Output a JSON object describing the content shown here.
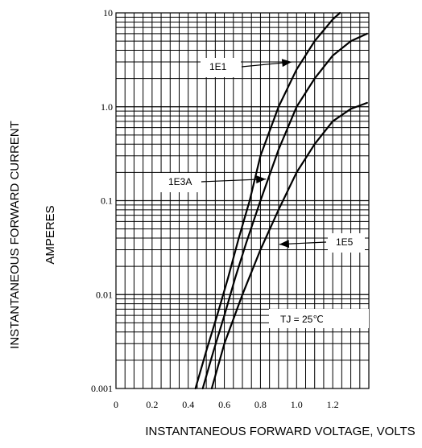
{
  "chart_data": {
    "type": "line",
    "title": "",
    "xlabel": "INSTANTANEOUS FORWARD VOLTAGE,  VOLTS",
    "ylabel_line1": "INSTANTANEOUS FORWARD CURRENT",
    "ylabel_line2": "AMPERES",
    "x_scale": "linear",
    "y_scale": "log",
    "xlim": [
      0,
      1.4
    ],
    "ylim": [
      0.001,
      10
    ],
    "grid": true,
    "x_ticks": [
      {
        "value": 0,
        "label": "0"
      },
      {
        "value": 0.2,
        "label": "0.2"
      },
      {
        "value": 0.4,
        "label": "0.4"
      },
      {
        "value": 0.6,
        "label": "0.6"
      },
      {
        "value": 0.8,
        "label": "0.8"
      },
      {
        "value": 1.0,
        "label": "1.0"
      },
      {
        "value": 1.2,
        "label": "1.2"
      }
    ],
    "y_ticks": [
      {
        "value": 0.001,
        "label": "0.001"
      },
      {
        "value": 0.01,
        "label": "0.01"
      },
      {
        "value": 0.1,
        "label": "0.1"
      },
      {
        "value": 1.0,
        "label": "1.0"
      },
      {
        "value": 10,
        "label": "10"
      }
    ],
    "series": [
      {
        "name": "1E1",
        "x": [
          0.44,
          0.5,
          0.56,
          0.62,
          0.68,
          0.74,
          0.8,
          0.9,
          1.0,
          1.1,
          1.2,
          1.24
        ],
        "y": [
          0.001,
          0.0025,
          0.006,
          0.015,
          0.04,
          0.1,
          0.3,
          1.0,
          2.5,
          5.0,
          8.5,
          10
        ]
      },
      {
        "name": "1E3A",
        "x": [
          0.48,
          0.54,
          0.6,
          0.66,
          0.72,
          0.8,
          0.9,
          1.0,
          1.1,
          1.2,
          1.3,
          1.39
        ],
        "y": [
          0.001,
          0.0025,
          0.006,
          0.015,
          0.035,
          0.1,
          0.35,
          1.0,
          2.0,
          3.5,
          5.0,
          6.0
        ]
      },
      {
        "name": "1E5",
        "x": [
          0.53,
          0.6,
          0.7,
          0.8,
          0.9,
          1.0,
          1.1,
          1.2,
          1.3,
          1.39
        ],
        "y": [
          0.001,
          0.003,
          0.01,
          0.03,
          0.08,
          0.2,
          0.4,
          0.7,
          0.95,
          1.1
        ]
      }
    ],
    "annotations": [
      {
        "text": "1E1",
        "series": "1E1",
        "arrow_to": [
          1.0,
          3.0
        ]
      },
      {
        "text": "1E3A",
        "series": "1E3A",
        "arrow_to": [
          0.83,
          0.17
        ]
      },
      {
        "text": "1E5",
        "series": "1E5",
        "arrow_to": [
          0.9,
          0.035
        ]
      },
      {
        "text": "TJ = 25℃"
      }
    ],
    "colors": {
      "lines": "#000000",
      "grid": "#000000",
      "background": "#ffffff"
    }
  }
}
